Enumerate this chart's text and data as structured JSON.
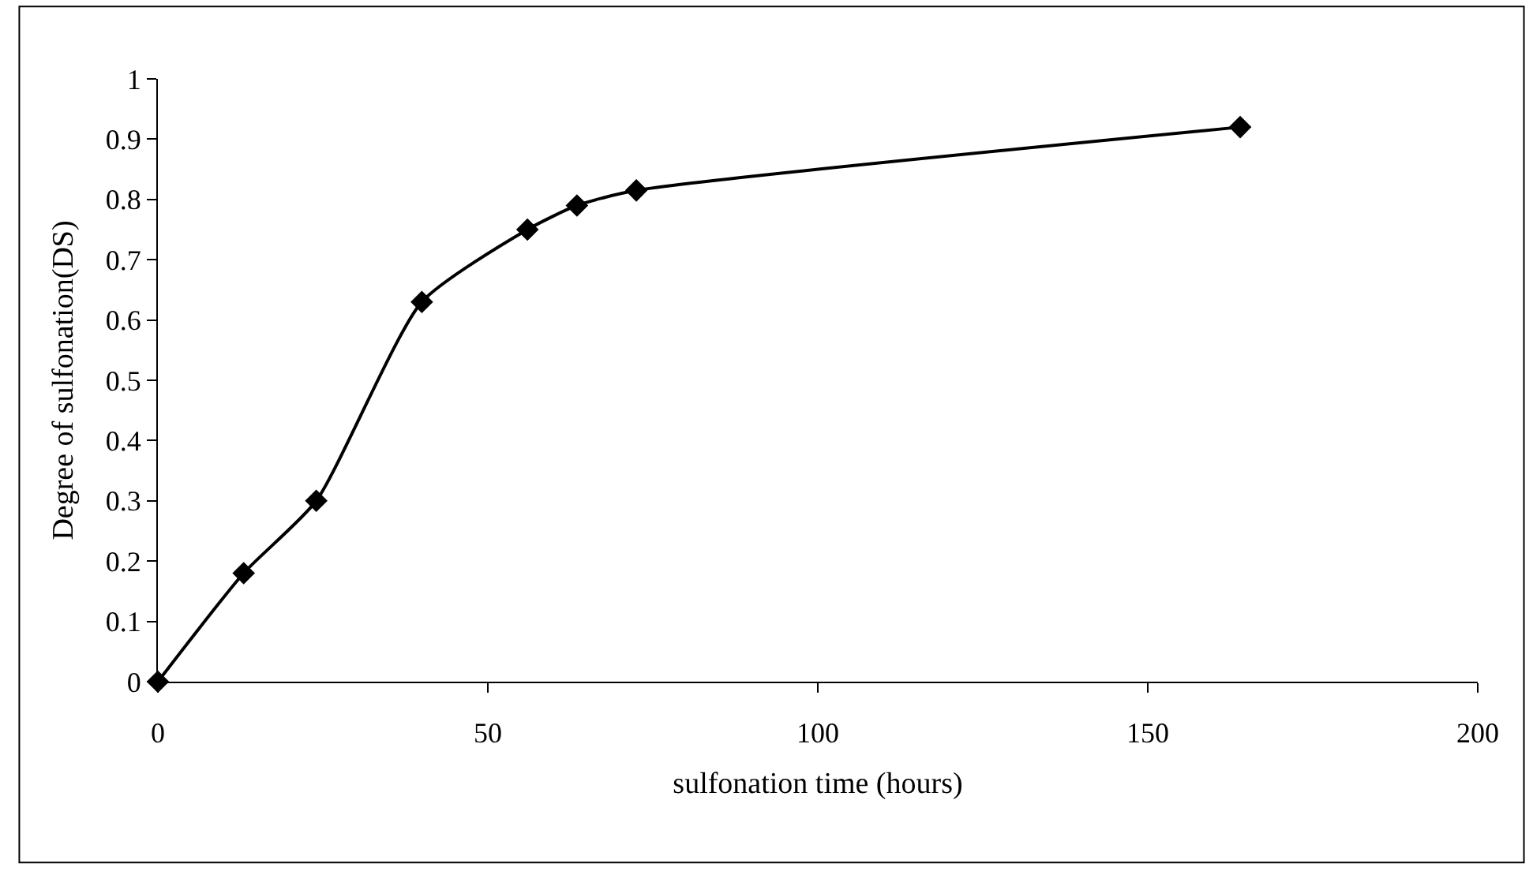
{
  "chart_data": {
    "type": "line",
    "xlabel": "sulfonation time (hours)",
    "ylabel": "Degree of sulfonation(DS)",
    "x": [
      0,
      13,
      24,
      40,
      56,
      63.5,
      72.5,
      164
    ],
    "series": [
      {
        "color": "#000000",
        "values": [
          0,
          0.18,
          0.3,
          0.63,
          0.75,
          0.79,
          0.815,
          0.92
        ]
      }
    ],
    "xlim": [
      0,
      200
    ],
    "xticks": [
      0,
      50,
      100,
      150,
      200
    ],
    "ylim": [
      0,
      1
    ],
    "yticks": [
      0,
      {
        "value": 0.1,
        "label": "0.1"
      },
      {
        "value": 0.2,
        "label": "0.2"
      },
      {
        "value": 0.3,
        "label": "0.3"
      },
      {
        "value": 0.4,
        "label": "0.4"
      },
      {
        "value": 0.5,
        "label": "0.5"
      },
      {
        "value": 0.6,
        "label": "0.6"
      },
      {
        "value": 0.7,
        "label": "0.7"
      },
      {
        "value": 0.8,
        "label": "0.8"
      },
      {
        "value": 0.9,
        "label": "0.9"
      },
      1
    ],
    "legend": false,
    "marker": "diamond",
    "line_style": "solid"
  }
}
